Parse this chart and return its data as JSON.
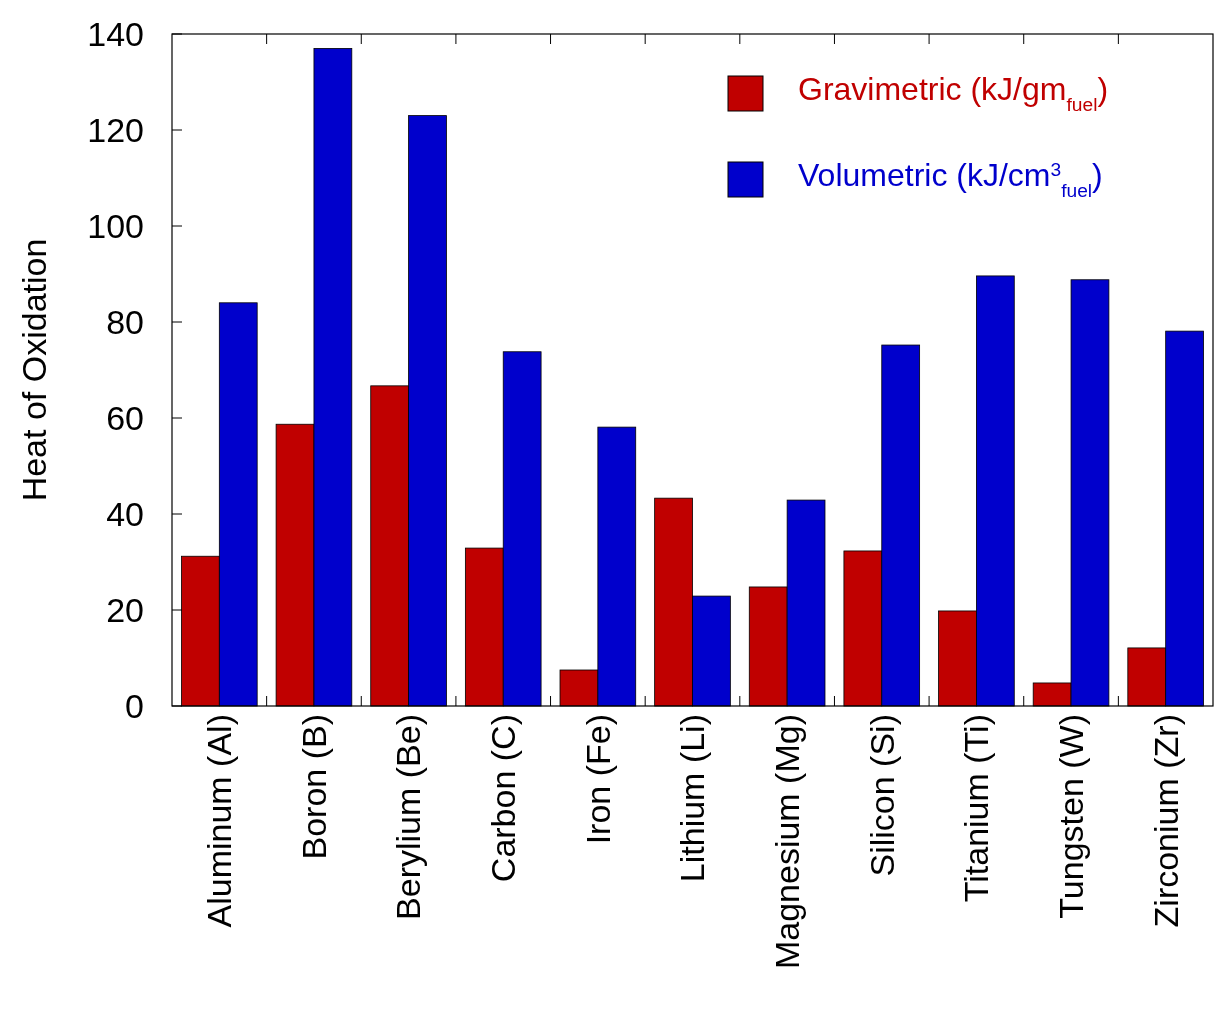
{
  "chart_data": {
    "type": "bar",
    "ylabel": "Heat of Oxidation",
    "categories": [
      "Aluminum (Al)",
      "Boron (B)",
      "Berylium (Be)",
      "Carbon (C)",
      "Iron (Fe)",
      "Lithium (Li)",
      "Magnesium (Mg)",
      "Silicon (Si)",
      "Titanium (Ti)",
      "Tungsten (W)",
      "Zirconium (Zr)"
    ],
    "series": [
      {
        "name": "Gravimetric (kJ/gm$_{fuel}$)",
        "color": "#c00000",
        "values": [
          31.2,
          58.7,
          66.7,
          32.9,
          7.5,
          43.3,
          24.8,
          32.3,
          19.8,
          4.8,
          12.1
        ]
      },
      {
        "name": "Volumetric (kJ/cm$^{3}$$_{fuel}$)",
        "color": "#0000cc",
        "values": [
          84,
          137,
          123,
          73.8,
          58.1,
          22.9,
          42.9,
          75.2,
          89.6,
          88.8,
          78.1
        ]
      }
    ],
    "ylim": [
      0,
      140
    ],
    "yticks": [
      0,
      20,
      40,
      60,
      80,
      100,
      120,
      140
    ],
    "grid": false,
    "legend": "top right"
  }
}
